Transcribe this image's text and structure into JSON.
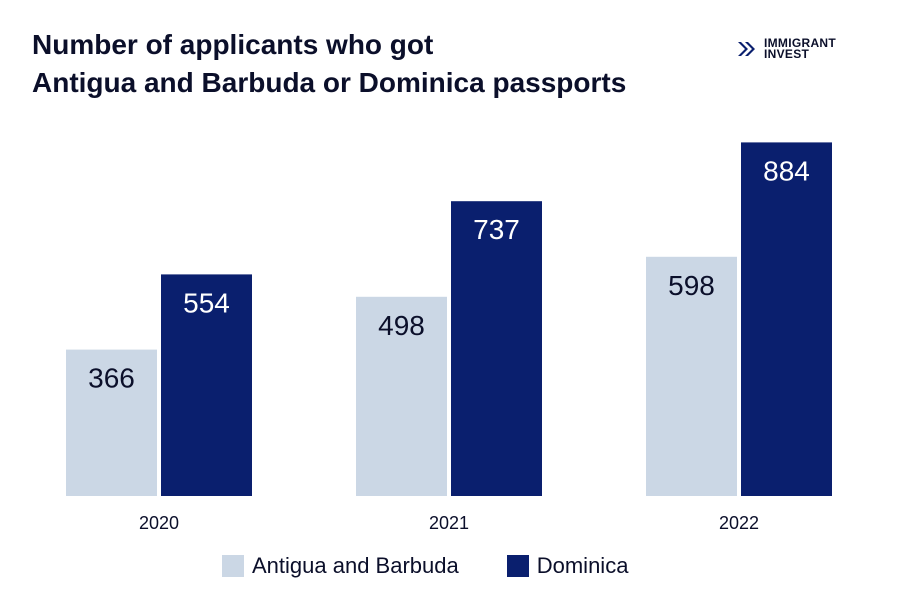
{
  "title_line1": "Number of applicants who got",
  "title_line2": "Antigua and Barbuda or Dominica passports",
  "logo": {
    "line1": "IMMIGRANT",
    "line2": "INVEST",
    "icon": "double-chevron-right-icon"
  },
  "colors": {
    "antigua": "#cbd7e5",
    "dominica": "#0a1f6e",
    "text": "#0b0f2a",
    "bar_label_light": "#ffffff",
    "bar_label_dark": "#0b0f2a"
  },
  "chart_data": {
    "type": "bar",
    "categories": [
      "2020",
      "2021",
      "2022"
    ],
    "series": [
      {
        "name": "Antigua and Barbuda",
        "values": [
          366,
          498,
          598
        ]
      },
      {
        "name": "Dominica",
        "values": [
          554,
          737,
          884
        ]
      }
    ],
    "title": "Number of applicants who got Antigua and Barbuda or Dominica passports",
    "xlabel": "",
    "ylabel": "",
    "ylim": [
      0,
      1000
    ],
    "grid": false,
    "legend": "bottom"
  }
}
